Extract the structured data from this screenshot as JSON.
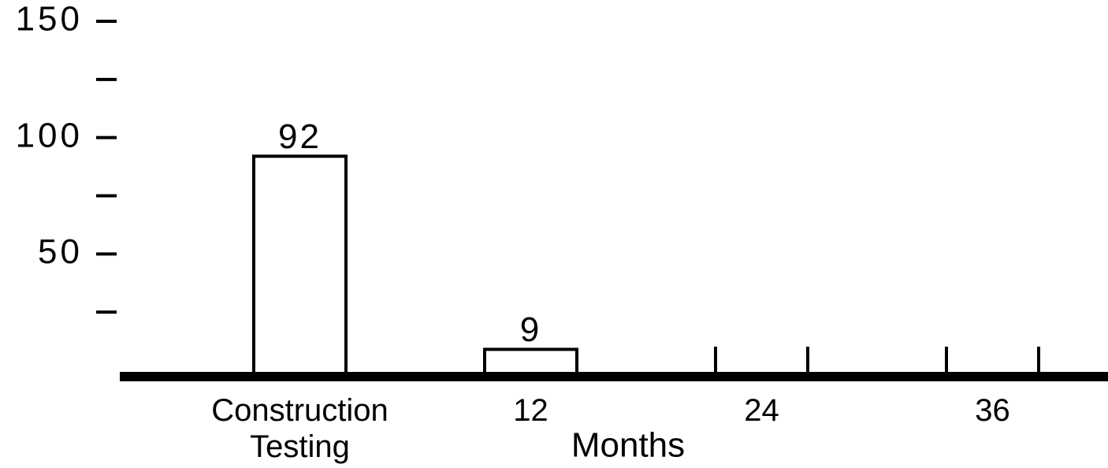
{
  "chart_data": {
    "type": "bar",
    "categories": [
      "Construction Testing",
      "12",
      "24",
      "36"
    ],
    "values": [
      92,
      9,
      null,
      null
    ],
    "x_label": "Months",
    "color": "#ffffff",
    "ylim": [
      0,
      150
    ],
    "yticks": [
      50,
      100,
      150
    ],
    "minor_yticks": [
      25,
      75,
      125
    ]
  }
}
